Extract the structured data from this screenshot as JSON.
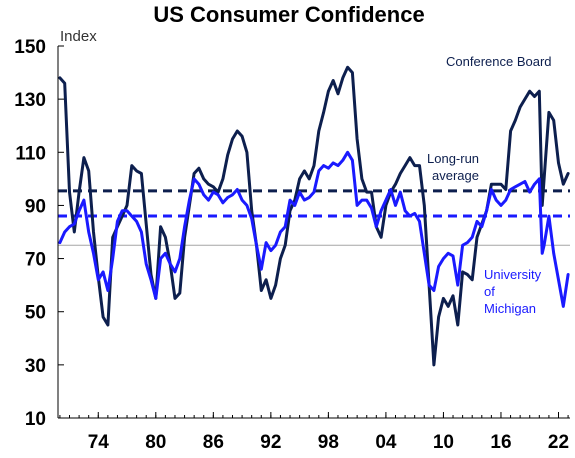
{
  "chart_data": {
    "type": "line",
    "title": "US Consumer Confidence",
    "ylabel": "Index",
    "ylim": [
      10,
      150
    ],
    "yticks": [
      10,
      30,
      50,
      70,
      90,
      110,
      130,
      150
    ],
    "xlim": [
      1969.8,
      2023.2
    ],
    "xticks": [
      {
        "x": 1974,
        "label": "74"
      },
      {
        "x": 1980,
        "label": "80"
      },
      {
        "x": 1986,
        "label": "86"
      },
      {
        "x": 1992,
        "label": "92"
      },
      {
        "x": 1998,
        "label": "98"
      },
      {
        "x": 2004,
        "label": "04"
      },
      {
        "x": 2010,
        "label": "10"
      },
      {
        "x": 2016,
        "label": "16"
      },
      {
        "x": 2022,
        "label": "22"
      }
    ],
    "reference_lines": [
      {
        "y": 75,
        "color": "#a6a6a6",
        "style": "solid"
      },
      {
        "y": 95.5,
        "color": "#0d1f4e",
        "style": "dashed"
      },
      {
        "y": 86,
        "color": "#1a1aff",
        "style": "dashed"
      }
    ],
    "series": [
      {
        "name": "Conference Board",
        "color": "#0d1f4e",
        "x": [
          1970.0,
          1970.5,
          1971.0,
          1971.5,
          1972.0,
          1972.5,
          1973.0,
          1973.5,
          1974.0,
          1974.5,
          1975.0,
          1975.5,
          1976.0,
          1976.5,
          1977.0,
          1977.5,
          1978.0,
          1978.5,
          1979.0,
          1979.5,
          1980.0,
          1980.5,
          1981.0,
          1981.5,
          1982.0,
          1982.5,
          1983.0,
          1983.5,
          1984.0,
          1984.5,
          1985.0,
          1985.5,
          1986.0,
          1986.5,
          1987.0,
          1987.5,
          1988.0,
          1988.5,
          1989.0,
          1989.5,
          1990.0,
          1990.5,
          1991.0,
          1991.5,
          1992.0,
          1992.5,
          1993.0,
          1993.5,
          1994.0,
          1994.5,
          1995.0,
          1995.5,
          1996.0,
          1996.5,
          1997.0,
          1997.5,
          1998.0,
          1998.5,
          1999.0,
          1999.5,
          2000.0,
          2000.5,
          2001.0,
          2001.5,
          2002.0,
          2002.5,
          2003.0,
          2003.5,
          2004.0,
          2004.5,
          2005.0,
          2005.5,
          2006.0,
          2006.5,
          2007.0,
          2007.5,
          2008.0,
          2008.5,
          2009.0,
          2009.5,
          2010.0,
          2010.5,
          2011.0,
          2011.5,
          2012.0,
          2012.5,
          2013.0,
          2013.5,
          2014.0,
          2014.5,
          2015.0,
          2015.5,
          2016.0,
          2016.5,
          2017.0,
          2017.5,
          2018.0,
          2018.5,
          2019.0,
          2019.5,
          2020.0,
          2020.3,
          2020.5,
          2021.0,
          2021.5,
          2022.0,
          2022.5,
          2023.0
        ],
        "values": [
          138,
          136,
          95,
          80,
          95,
          108,
          103,
          80,
          63,
          48,
          45,
          78,
          82,
          86,
          90,
          105,
          103,
          102,
          83,
          64,
          55,
          82,
          78,
          68,
          55,
          57,
          78,
          90,
          102,
          104,
          100,
          98,
          97,
          95,
          100,
          109,
          115,
          118,
          116,
          110,
          88,
          75,
          58,
          62,
          55,
          60,
          70,
          75,
          88,
          92,
          100,
          103,
          100,
          105,
          118,
          125,
          133,
          137,
          132,
          138,
          142,
          140,
          115,
          100,
          95,
          95,
          82,
          78,
          90,
          95,
          98,
          102,
          105,
          108,
          105,
          105,
          90,
          60,
          30,
          48,
          55,
          52,
          56,
          45,
          65,
          64,
          62,
          78,
          83,
          88,
          98,
          98,
          98,
          96,
          118,
          122,
          127,
          130,
          133,
          131,
          133,
          90,
          100,
          125,
          122,
          106,
          98,
          102
        ]
      },
      {
        "name": "University of Michigan",
        "color": "#1a1aff",
        "x": [
          1970.0,
          1970.5,
          1971.0,
          1971.5,
          1972.0,
          1972.5,
          1973.0,
          1973.5,
          1974.0,
          1974.5,
          1975.0,
          1975.5,
          1976.0,
          1976.5,
          1977.0,
          1977.5,
          1978.0,
          1978.5,
          1979.0,
          1979.5,
          1980.0,
          1980.5,
          1981.0,
          1981.5,
          1982.0,
          1982.5,
          1983.0,
          1983.5,
          1984.0,
          1984.5,
          1985.0,
          1985.5,
          1986.0,
          1986.5,
          1987.0,
          1987.5,
          1988.0,
          1988.5,
          1989.0,
          1989.5,
          1990.0,
          1990.5,
          1991.0,
          1991.5,
          1992.0,
          1992.5,
          1993.0,
          1993.5,
          1994.0,
          1994.5,
          1995.0,
          1995.5,
          1996.0,
          1996.5,
          1997.0,
          1997.5,
          1998.0,
          1998.5,
          1999.0,
          1999.5,
          2000.0,
          2000.5,
          2001.0,
          2001.5,
          2002.0,
          2002.5,
          2003.0,
          2003.5,
          2004.0,
          2004.5,
          2005.0,
          2005.5,
          2006.0,
          2006.5,
          2007.0,
          2007.5,
          2008.0,
          2008.5,
          2009.0,
          2009.5,
          2010.0,
          2010.5,
          2011.0,
          2011.5,
          2012.0,
          2012.5,
          2013.0,
          2013.5,
          2014.0,
          2014.5,
          2015.0,
          2015.5,
          2016.0,
          2016.5,
          2017.0,
          2017.5,
          2018.0,
          2018.5,
          2019.0,
          2019.5,
          2020.0,
          2020.3,
          2020.5,
          2021.0,
          2021.5,
          2022.0,
          2022.5,
          2023.0
        ],
        "values": [
          76,
          80,
          82,
          83,
          88,
          92,
          80,
          72,
          62,
          65,
          58,
          70,
          84,
          88,
          88,
          86,
          84,
          80,
          68,
          62,
          55,
          70,
          72,
          68,
          65,
          70,
          82,
          92,
          100,
          98,
          94,
          92,
          95,
          94,
          91,
          93,
          94,
          96,
          92,
          90,
          85,
          75,
          66,
          76,
          73,
          75,
          80,
          82,
          92,
          90,
          95,
          92,
          93,
          95,
          103,
          105,
          104,
          106,
          105,
          107,
          110,
          107,
          90,
          92,
          92,
          89,
          82,
          88,
          92,
          96,
          90,
          95,
          88,
          86,
          87,
          84,
          72,
          60,
          58,
          67,
          70,
          72,
          71,
          60,
          75,
          76,
          78,
          84,
          82,
          88,
          96,
          92,
          90,
          92,
          96,
          97,
          98,
          99,
          95,
          98,
          100,
          72,
          75,
          86,
          72,
          62,
          52,
          64
        ]
      }
    ],
    "annotations": {
      "conference_board": "Conference Board",
      "long_run_line1": "Long-run",
      "long_run_line2": "average",
      "umich_line1": "University",
      "umich_line2": "of",
      "umich_line3": "Michigan"
    },
    "colors": {
      "conference_board": "#0d1f4e",
      "umich": "#1a1aff",
      "reference": "#a6a6a6",
      "axis": "#000000"
    },
    "grid": false
  }
}
